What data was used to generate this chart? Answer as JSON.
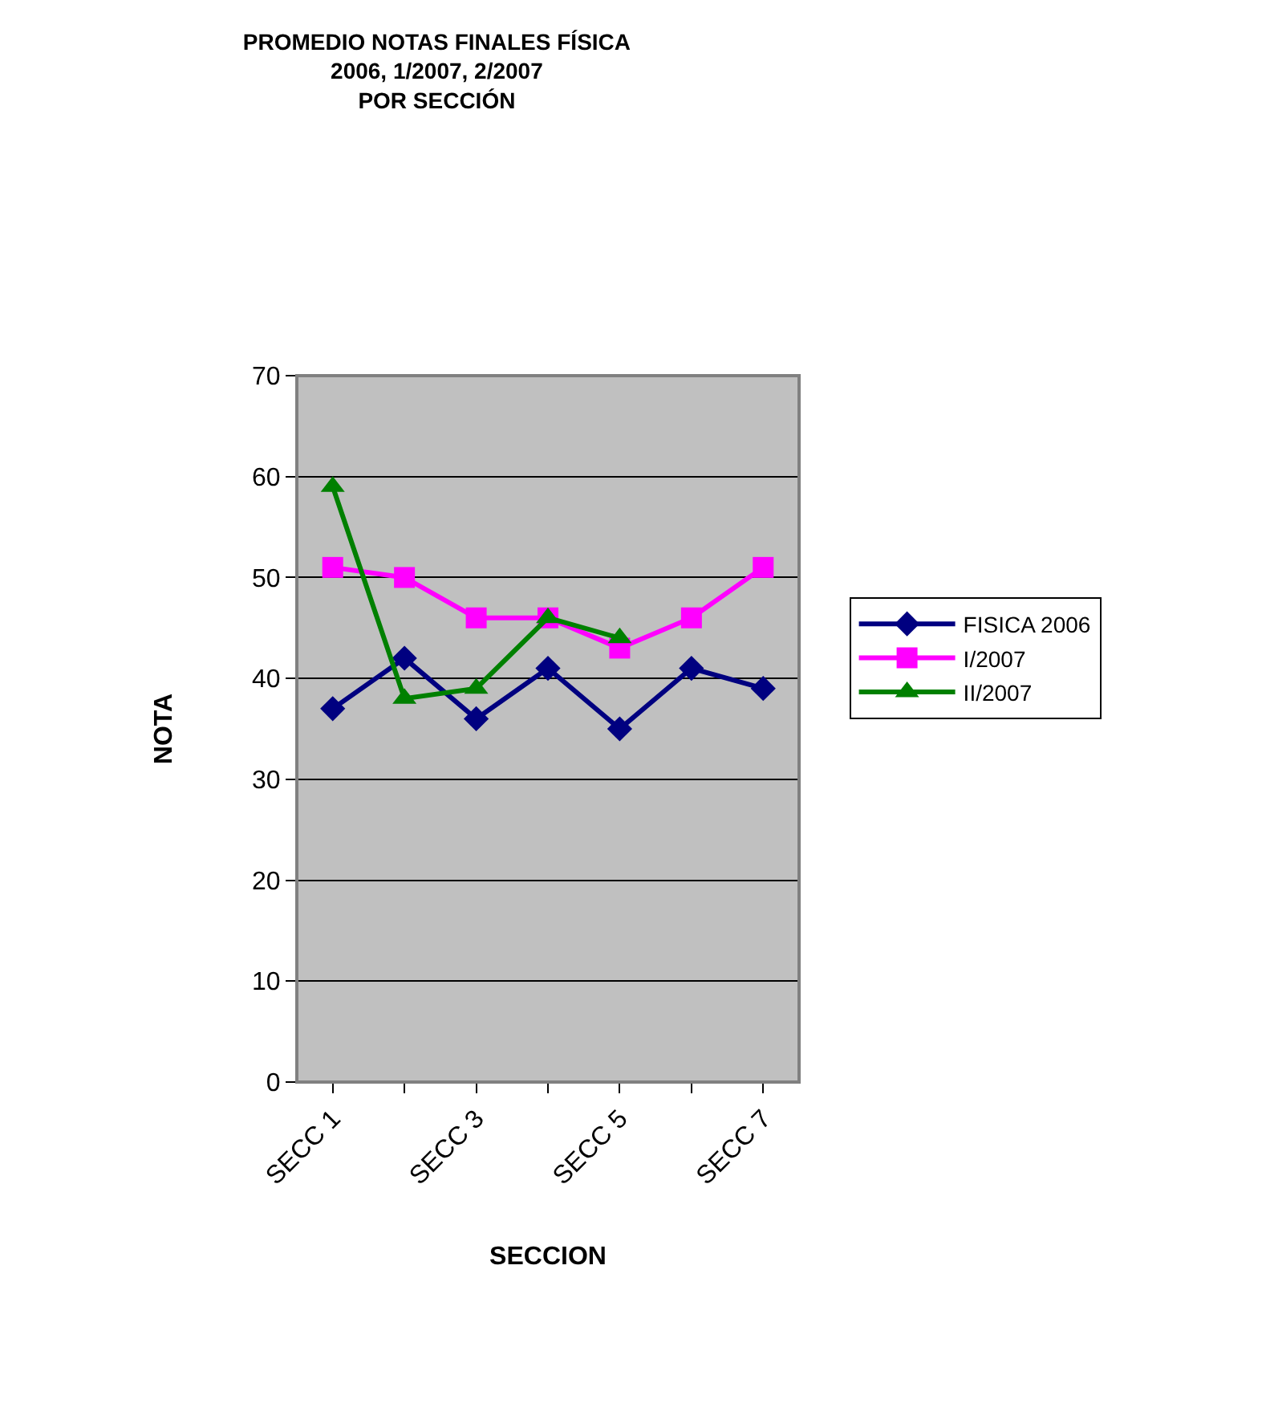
{
  "chart_data": {
    "type": "line",
    "title": "PROMEDIO NOTAS FINALES FÍSICA\n2006, 1/2007, 2/2007\nPOR SECCIÓN",
    "xlabel": "SECCION",
    "ylabel": "NOTA",
    "categories": [
      "SECC 1",
      null,
      "SECC 3",
      null,
      "SECC 5",
      null,
      "SECC 7"
    ],
    "series": [
      {
        "name": "FISICA 2006",
        "color": "#000080",
        "marker": "diamond",
        "values": [
          37,
          42,
          36,
          41,
          35,
          41,
          39
        ]
      },
      {
        "name": "I/2007",
        "color": "#ff00ff",
        "marker": "square",
        "values": [
          51,
          50,
          46,
          46,
          43,
          46,
          51
        ]
      },
      {
        "name": "II/2007",
        "color": "#008000",
        "marker": "triangle",
        "values": [
          59,
          38,
          39,
          46,
          44,
          null,
          null
        ]
      }
    ],
    "ylim": [
      0,
      70
    ],
    "yticks": [
      0,
      10,
      20,
      30,
      40,
      50,
      60,
      70
    ],
    "grid": "y",
    "legend": "right",
    "line_style": "solid"
  }
}
